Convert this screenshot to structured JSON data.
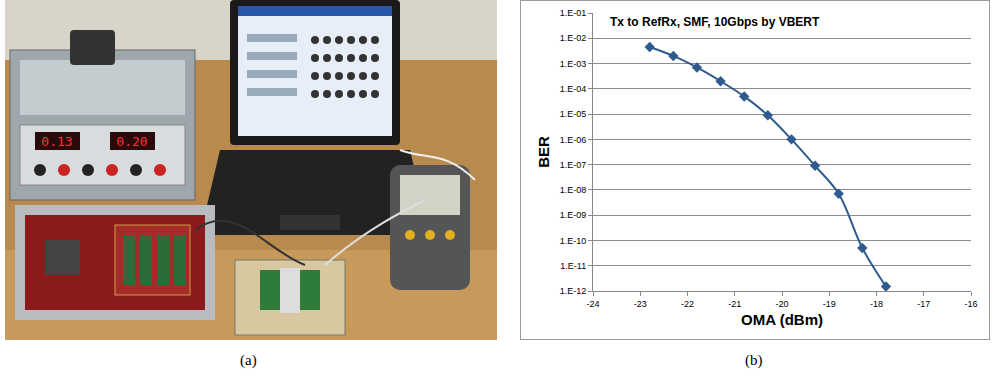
{
  "captions": {
    "a": "(a)",
    "b": "(b)"
  },
  "photo": {
    "readings": [
      "0.13",
      "0.20"
    ]
  },
  "chart_data": {
    "type": "line",
    "title": "Tx to RefRx, SMF, 10Gbps by VBERT",
    "x_label": "OMA (dBm)",
    "y_label": "BER",
    "x": [
      -22.8,
      -22.3,
      -21.8,
      -21.3,
      -20.8,
      -20.3,
      -19.8,
      -19.3,
      -18.8,
      -18.3,
      -17.8
    ],
    "values": [
      0.0045,
      0.002,
      0.0007,
      0.0002,
      5e-05,
      9e-06,
      1e-06,
      9e-08,
      7e-09,
      5e-11,
      1.5e-12
    ],
    "color": "#2f5b8f",
    "marker": "diamond",
    "line_style": "smooth",
    "log": "y",
    "grid": true,
    "xlim": [
      -24,
      -16
    ],
    "xticks": [
      -24,
      -23,
      -22,
      -21,
      -20,
      -19,
      -18,
      -17,
      -16
    ],
    "ylim": [
      1e-12,
      0.1
    ],
    "yticks": [
      {
        "value": 1e-12,
        "label": "1.E-12"
      },
      {
        "value": 1e-11,
        "label": "1.E-11"
      },
      {
        "value": 1e-10,
        "label": "1.E-10"
      },
      {
        "value": 1e-09,
        "label": "1.E-09"
      },
      {
        "value": 1e-08,
        "label": "1.E-08"
      },
      {
        "value": 1e-07,
        "label": "1.E-07"
      },
      {
        "value": 1e-06,
        "label": "1.E-06"
      },
      {
        "value": 1e-05,
        "label": "1.E-05"
      },
      {
        "value": 0.0001,
        "label": "1.E-04"
      },
      {
        "value": 0.001,
        "label": "1.E-03"
      },
      {
        "value": 0.01,
        "label": "1.E-02"
      },
      {
        "value": 0.1,
        "label": "1.E-01"
      }
    ]
  }
}
